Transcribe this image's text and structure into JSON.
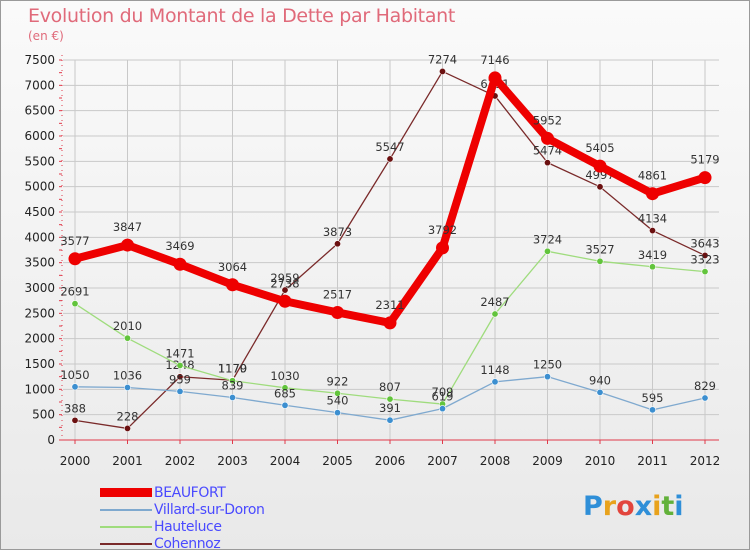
{
  "title": "Evolution du Montant de la Dette par Habitant",
  "subtitle": "(en €)",
  "logo": {
    "text": "Proxiti",
    "letter_colors": [
      "#2f8fd8",
      "#e8a21c",
      "#e2453d",
      "#2f8fd8",
      "#e8a21c",
      "#62b13a",
      "#2f8fd8"
    ]
  },
  "colors": {
    "axis": "#e03a4a",
    "grid": "#c9c9c9",
    "tick_text": "#222222",
    "value_text": "#333333"
  },
  "chart_data": {
    "type": "line",
    "title": "Evolution du Montant de la Dette par Habitant",
    "subtitle": "(en €)",
    "xlabel": "",
    "ylabel": "",
    "x": [
      "2000",
      "2001",
      "2002",
      "2003",
      "2004",
      "2005",
      "2006",
      "2007",
      "2008",
      "2009",
      "2010",
      "2011",
      "2012"
    ],
    "ylim": [
      0,
      7500
    ],
    "yticks": [
      0,
      500,
      1000,
      1500,
      2000,
      2500,
      3000,
      3500,
      4000,
      4500,
      5000,
      5500,
      6000,
      6500,
      7000,
      7500
    ],
    "grid": true,
    "legend_position": "bottom-left",
    "series": [
      {
        "name": "Cohennoz",
        "color": "#7a2a2a",
        "marker": "#6b1010",
        "emphasis": false,
        "values": [
          388,
          228,
          1248,
          1179,
          2959,
          3873,
          5547,
          7274,
          6791,
          5474,
          4997,
          4134,
          3643
        ]
      },
      {
        "name": "Hauteluce",
        "color": "#9fdc7d",
        "marker": "#62c43c",
        "emphasis": false,
        "values": [
          2691,
          2010,
          1471,
          1170,
          1030,
          922,
          807,
          709,
          2487,
          3724,
          3527,
          3419,
          3323
        ]
      },
      {
        "name": "Villard-sur-Doron",
        "color": "#7fa9cf",
        "marker": "#3c8fd0",
        "emphasis": false,
        "values": [
          1050,
          1036,
          959,
          839,
          685,
          540,
          391,
          619,
          1148,
          1250,
          940,
          595,
          829
        ]
      },
      {
        "name": "BEAUFORT",
        "color": "#ee0000",
        "marker": "#ee0000",
        "emphasis": true,
        "values": [
          3577,
          3847,
          3469,
          3064,
          2738,
          2517,
          2311,
          3792,
          7146,
          5952,
          5405,
          4861,
          5179
        ]
      }
    ]
  },
  "legend": [
    {
      "name": "BEAUFORT",
      "color": "#ee0000",
      "thick": true
    },
    {
      "name": "Villard-sur-Doron",
      "color": "#7fa9cf",
      "thick": false
    },
    {
      "name": "Hauteluce",
      "color": "#9fdc7d",
      "thick": false
    },
    {
      "name": "Cohennoz",
      "color": "#7a2a2a",
      "thick": false
    }
  ]
}
